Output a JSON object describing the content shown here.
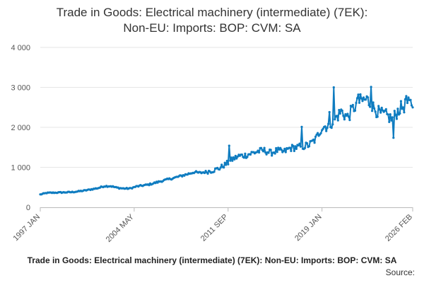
{
  "chart_data": {
    "type": "line",
    "title": [
      "Trade in Goods: Electrical machinery (intermediate) (7EK):",
      "Non-EU: Imports: BOP: CVM: SA"
    ],
    "xlabel": "",
    "ylabel": "",
    "ylim": [
      0,
      4000
    ],
    "yticks": [
      0,
      1000,
      2000,
      3000,
      4000
    ],
    "ytick_labels": [
      "0",
      "1 000",
      "2 000",
      "3 000",
      "4 000"
    ],
    "xticks": [
      "1997 JAN",
      "2004 MAY",
      "2011 SEP",
      "2019 JAN",
      "2026 FEB"
    ],
    "x_start": "1997 JAN",
    "x_end": "2026 FEB",
    "grid": true,
    "series": [
      {
        "name": "Electrical machinery (intermediate) (7EK): Non-EU: Imports",
        "color": "#0f7cc0",
        "anchors": [
          [
            1997.0,
            320
          ],
          [
            1997.5,
            360
          ],
          [
            1998.5,
            370
          ],
          [
            1999.5,
            380
          ],
          [
            2000.5,
            420
          ],
          [
            2001.5,
            480
          ],
          [
            2002.0,
            530
          ],
          [
            2002.5,
            530
          ],
          [
            2003.0,
            490
          ],
          [
            2003.5,
            470
          ],
          [
            2004.0,
            470
          ],
          [
            2004.5,
            520
          ],
          [
            2005.5,
            570
          ],
          [
            2006.5,
            660
          ],
          [
            2007.5,
            740
          ],
          [
            2008.5,
            830
          ],
          [
            2009.0,
            880
          ],
          [
            2009.5,
            860
          ],
          [
            2010.5,
            920
          ],
          [
            2011.0,
            980
          ],
          [
            2011.7,
            1120
          ],
          [
            2012.0,
            1200
          ],
          [
            2012.5,
            1280
          ],
          [
            2013.0,
            1300
          ],
          [
            2013.5,
            1350
          ],
          [
            2014.0,
            1400
          ],
          [
            2014.5,
            1420
          ],
          [
            2015.0,
            1360
          ],
          [
            2015.5,
            1420
          ],
          [
            2016.0,
            1380
          ],
          [
            2016.5,
            1480
          ],
          [
            2017.0,
            1500
          ],
          [
            2017.5,
            1520
          ],
          [
            2018.0,
            1560
          ],
          [
            2018.5,
            1700
          ],
          [
            2019.0,
            2000
          ],
          [
            2019.5,
            2050
          ],
          [
            2020.0,
            2200
          ],
          [
            2020.5,
            2400
          ],
          [
            2021.0,
            2250
          ],
          [
            2021.5,
            2500
          ],
          [
            2022.0,
            2650
          ],
          [
            2022.5,
            2700
          ],
          [
            2023.0,
            2500
          ],
          [
            2023.5,
            2350
          ],
          [
            2024.0,
            2300
          ],
          [
            2024.5,
            2200
          ],
          [
            2025.0,
            2450
          ],
          [
            2025.5,
            2550
          ],
          [
            2026.08,
            2600
          ]
        ],
        "spikes": [
          [
            2011.75,
            1540
          ],
          [
            2017.4,
            2010
          ],
          [
            2019.9,
            3000
          ],
          [
            2019.6,
            2380
          ],
          [
            2022.8,
            3010
          ],
          [
            2021.8,
            2820
          ],
          [
            2024.6,
            1740
          ],
          [
            2025.6,
            2780
          ]
        ]
      }
    ]
  },
  "footer": {
    "caption": "Trade in Goods: Electrical machinery (intermediate) (7EK): Non-EU: Imports: BOP: CVM: SA",
    "source_label": "Source:"
  }
}
